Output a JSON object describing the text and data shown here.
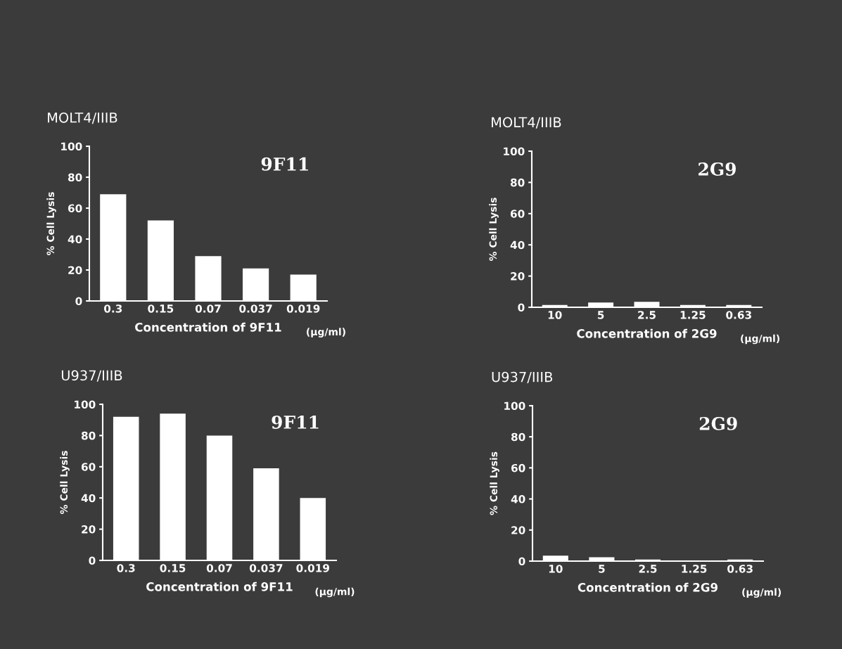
{
  "chart_data": [
    {
      "type": "bar",
      "title": "MOLT4/IIIB",
      "xlabel": "Concentration of 9F11",
      "ylabel": "% Cell Lysis",
      "annotations": [
        "9F11",
        "(µg/ml)"
      ],
      "categories": [
        "0.3",
        "0.15",
        "0.07",
        "0.037",
        "0.019"
      ],
      "values": [
        69,
        52,
        29,
        21,
        17
      ],
      "color": "#ffffff",
      "ylim": [
        0,
        100
      ],
      "yticks": [
        0,
        20,
        40,
        60,
        80,
        100
      ],
      "grid": false
    },
    {
      "type": "bar",
      "title": "MOLT4/IIIB",
      "xlabel": "Concentration of 2G9",
      "ylabel": "% Cell Lysis",
      "annotations": [
        "2G9",
        "(µg/ml)"
      ],
      "categories": [
        "10",
        "5",
        "2.5",
        "1.25",
        "0.63"
      ],
      "values": [
        1.5,
        3,
        3.5,
        1.5,
        1.5
      ],
      "color": "#ffffff",
      "ylim": [
        0,
        100
      ],
      "yticks": [
        0,
        20,
        40,
        60,
        80,
        100
      ],
      "grid": false
    },
    {
      "type": "bar",
      "title": "U937/IIIB",
      "xlabel": "Concentration of 9F11",
      "ylabel": "% Cell Lysis",
      "annotations": [
        "9F11",
        "(µg/ml)"
      ],
      "categories": [
        "0.3",
        "0.15",
        "0.07",
        "0.037",
        "0.019"
      ],
      "values": [
        92,
        94,
        80,
        59,
        40
      ],
      "color": "#ffffff",
      "ylim": [
        0,
        100
      ],
      "yticks": [
        0,
        20,
        40,
        60,
        80,
        100
      ],
      "grid": false
    },
    {
      "type": "bar",
      "title": "U937/IIIB",
      "xlabel": "Concentration of 2G9",
      "ylabel": "% Cell Lysis",
      "annotations": [
        "2G9",
        "(µg/ml)"
      ],
      "categories": [
        "10",
        "5",
        "2.5",
        "1.25",
        "0.63"
      ],
      "values": [
        3.5,
        2.5,
        1,
        0.5,
        1
      ],
      "color": "#ffffff",
      "ylim": [
        0,
        100
      ],
      "yticks": [
        0,
        20,
        40,
        60,
        80,
        100
      ],
      "grid": false
    }
  ]
}
